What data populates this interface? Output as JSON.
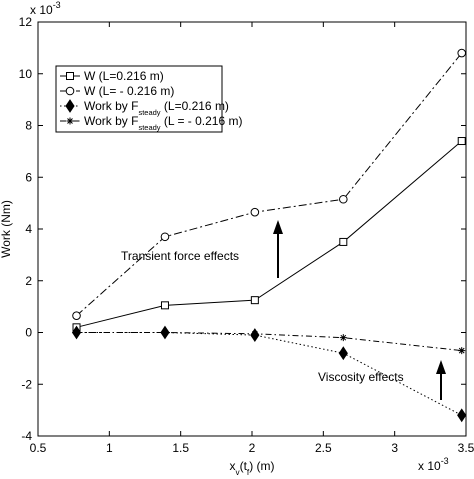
{
  "chart_data": {
    "type": "line",
    "ylabel": "Work (Nm)",
    "xlabel": [
      {
        "text": "x"
      },
      {
        "text": "v",
        "sub": true
      },
      {
        "text": "(t"
      },
      {
        "text": "f",
        "sub": true
      },
      {
        "text": ") (m)"
      }
    ],
    "y_multiplier": {
      "base": "x 10",
      "exponent": "-3"
    },
    "x_multiplier": {
      "base": "x 10",
      "exponent": "-3"
    },
    "x": [
      0.77,
      1.39,
      2.02,
      2.64,
      3.47
    ],
    "xlim": [
      0.5,
      3.5
    ],
    "xticks": [
      0.5,
      1,
      1.5,
      2,
      2.5,
      3,
      3.5
    ],
    "ylim": [
      -4,
      12
    ],
    "yticks": [
      -4,
      -2,
      0,
      2,
      4,
      6,
      8,
      10,
      12
    ],
    "series": [
      {
        "name": [
          {
            "text": "W (L=0.216 m)"
          }
        ],
        "color": "#000000",
        "marker": "square",
        "dash": "none",
        "values": [
          0.2,
          1.05,
          1.25,
          3.5,
          7.4
        ]
      },
      {
        "name": [
          {
            "text": "W (L= - 0.216 m)"
          }
        ],
        "color": "#000000",
        "marker": "circle",
        "dash": "8 3 2 3",
        "values": [
          0.65,
          3.7,
          4.65,
          5.15,
          10.8
        ]
      },
      {
        "name": [
          {
            "text": "Work by F"
          },
          {
            "text": "steady",
            "sub": true
          },
          {
            "text": " (L=0.216 m)"
          }
        ],
        "color": "#000000",
        "marker": "diamond",
        "dash": "1.5 2.5",
        "values": [
          0.0,
          0.0,
          -0.1,
          -0.8,
          -3.2
        ]
      },
      {
        "name": [
          {
            "text": "Work by F"
          },
          {
            "text": "steady",
            "sub": true
          },
          {
            "text": " (L = - 0.216 m)"
          }
        ],
        "color": "#000000",
        "marker": "asterisk",
        "dash": "6 3 1.5 3",
        "values": [
          0.0,
          0.0,
          -0.05,
          -0.2,
          -0.7
        ]
      }
    ],
    "annotations": [
      "Transient force effects",
      "Viscosity effects"
    ]
  }
}
